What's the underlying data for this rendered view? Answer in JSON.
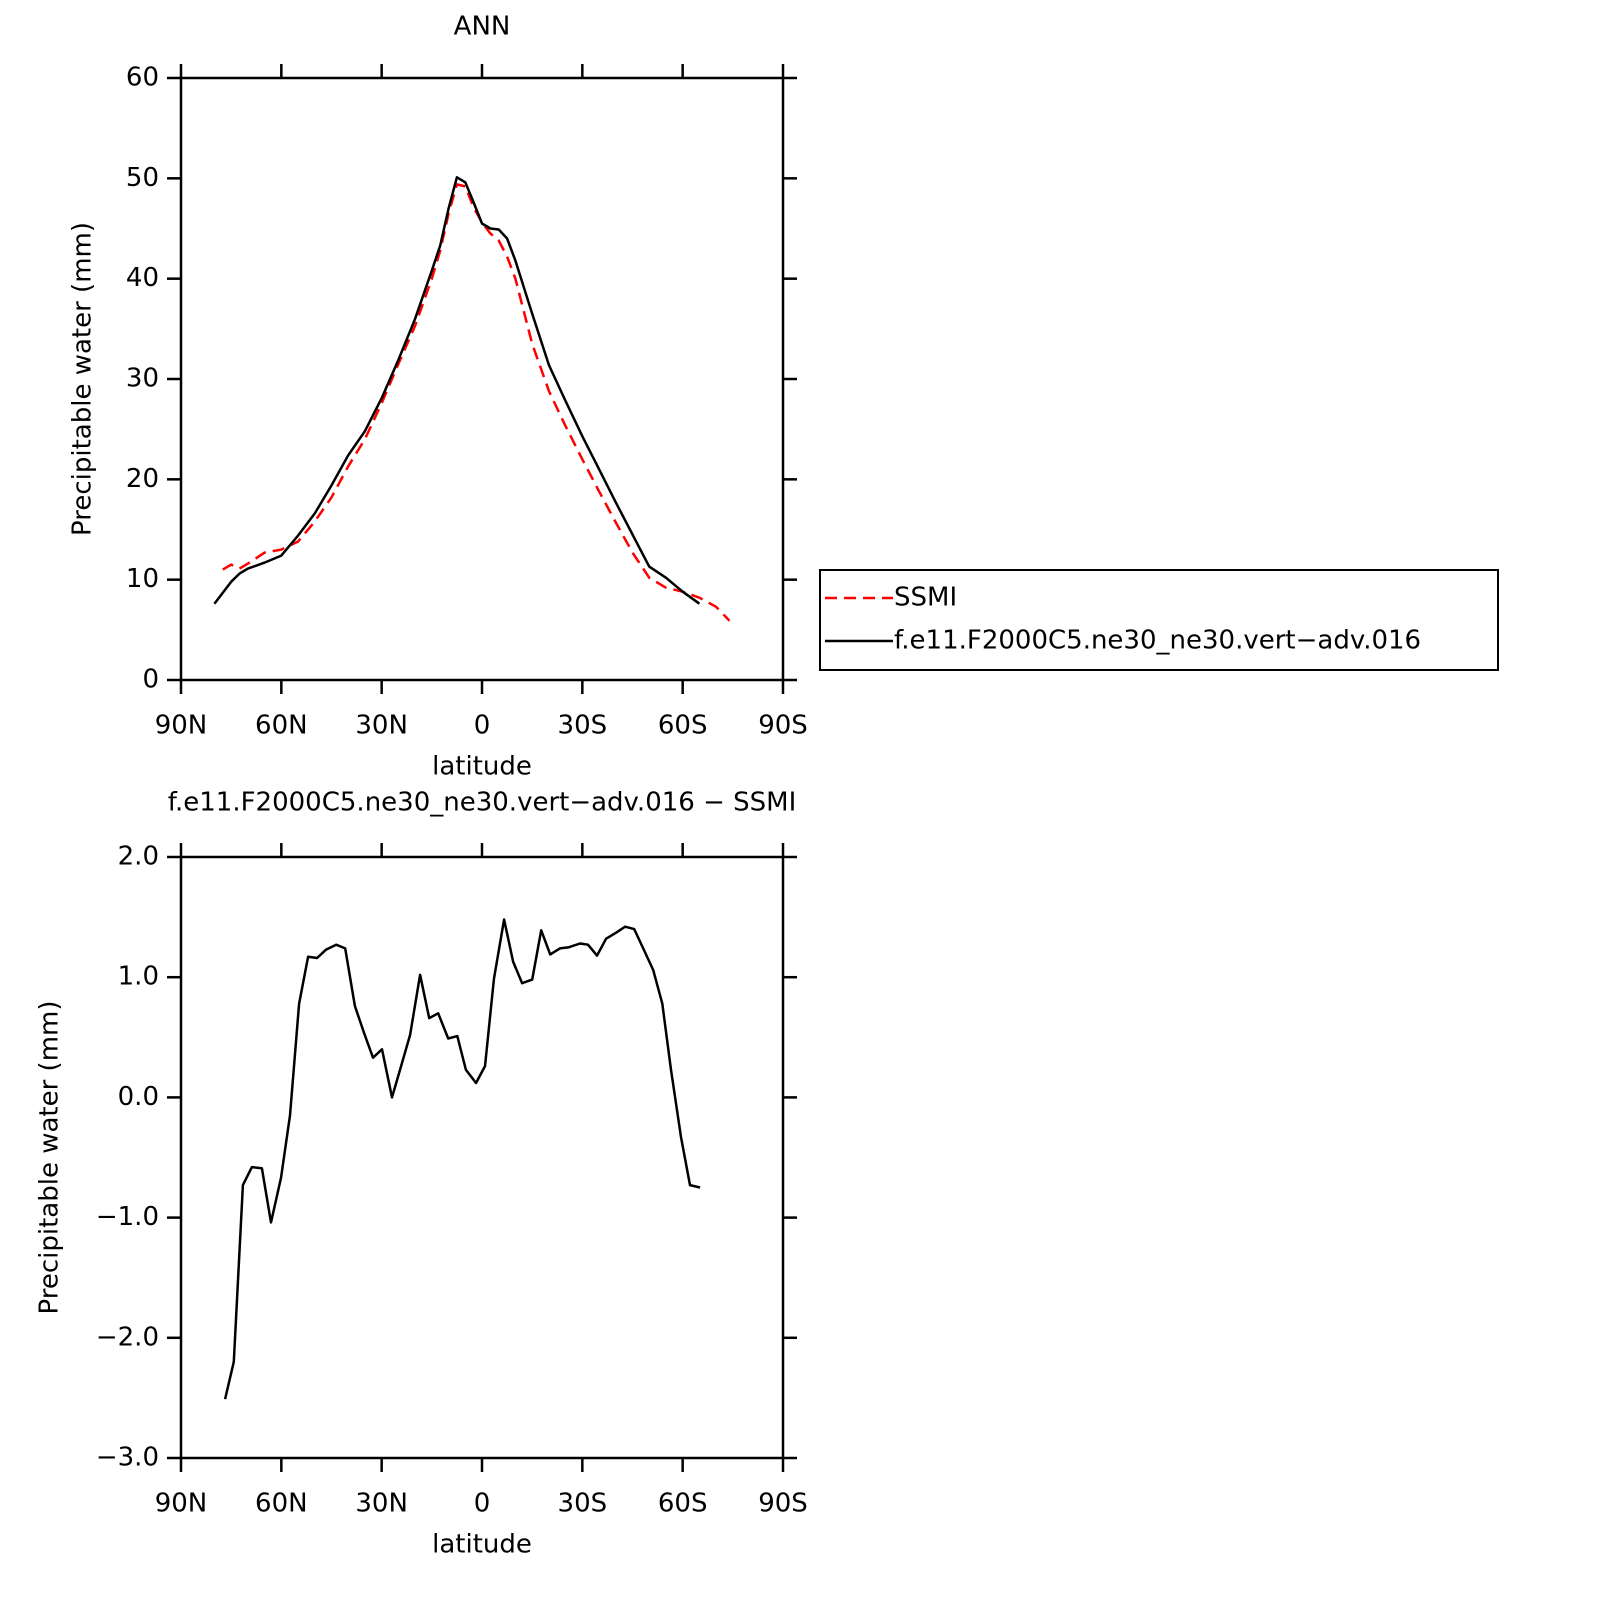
{
  "chart_data": [
    {
      "type": "line",
      "title": "ANN",
      "x_label": "latitude",
      "y_label": "Precipitable water (mm)",
      "x": [
        80,
        77.5,
        75,
        72.5,
        70,
        65,
        60,
        55,
        50,
        45,
        40,
        35,
        30,
        25,
        20,
        15,
        12.5,
        10,
        7.5,
        5,
        2.5,
        0,
        -2.5,
        -5,
        -7.5,
        -10,
        -15,
        -20,
        -25,
        -30,
        -35,
        -40,
        -45,
        -50,
        -55,
        -60,
        -65,
        -70,
        -74
      ],
      "series": [
        {
          "name": "SSMI",
          "color": "#ff0000",
          "linestyle": "dashed",
          "values": [
            null,
            11.0,
            11.5,
            11.1,
            11.6,
            12.7,
            13.0,
            13.8,
            15.8,
            18.2,
            21.3,
            24.0,
            27.6,
            31.5,
            35.3,
            40.0,
            42.8,
            46.5,
            49.4,
            49.2,
            47.1,
            45.6,
            44.5,
            43.8,
            42.2,
            40.0,
            33.5,
            28.8,
            25.3,
            22.0,
            18.8,
            15.7,
            12.7,
            10.2,
            9.2,
            8.8,
            8.2,
            7.3,
            5.9
          ]
        },
        {
          "name": "f.e11.F2000C5.ne30_ne30.vert−adv.016",
          "color": "#000000",
          "linestyle": "solid",
          "values": [
            7.6,
            8.7,
            9.8,
            10.6,
            11.1,
            11.7,
            12.4,
            14.4,
            16.6,
            19.4,
            22.4,
            24.8,
            28.1,
            31.9,
            36.0,
            40.8,
            43.3,
            47.0,
            50.1,
            49.6,
            47.6,
            45.5,
            45.0,
            44.9,
            44.0,
            41.8,
            36.5,
            31.4,
            27.8,
            24.3,
            21.0,
            17.7,
            14.5,
            11.3,
            10.2,
            8.8,
            7.6,
            null,
            null
          ]
        }
      ],
      "xlim": [
        90,
        -90
      ],
      "xticks": [
        {
          "value": 90,
          "label": "90N"
        },
        {
          "value": 60,
          "label": "60N"
        },
        {
          "value": 30,
          "label": "30N"
        },
        0,
        {
          "value": -30,
          "label": "30S"
        },
        {
          "value": -60,
          "label": "60S"
        },
        {
          "value": -90,
          "label": "90S"
        }
      ],
      "ylim": [
        0,
        60
      ],
      "yticks": [
        0,
        10,
        20,
        30,
        40,
        50,
        60
      ],
      "legend": "right"
    },
    {
      "type": "line",
      "title": "f.e11.F2000C5.ne30_ne30.vert−adv.016 − SSMI",
      "x_label": "latitude",
      "y_label": "Precipitable water (mm)",
      "x": [
        76.8,
        74.2,
        71.5,
        68.8,
        65.8,
        63.1,
        60.1,
        57.4,
        54.7,
        52.0,
        49.3,
        46.6,
        43.6,
        40.9,
        38.0,
        35.3,
        32.6,
        29.9,
        26.9,
        24.2,
        21.5,
        18.5,
        15.8,
        13.1,
        10.1,
        7.4,
        4.8,
        1.8,
        -0.9,
        -3.6,
        -6.6,
        -9.3,
        -12.0,
        -15.0,
        -17.7,
        -20.4,
        -23.3,
        -26.0,
        -29.3,
        -31.7,
        -34.4,
        -37.1,
        -40.1,
        -42.8,
        -45.5,
        -48.2,
        -51.2,
        -53.9,
        -56.5,
        -59.5,
        -62.2,
        -65.2
      ],
      "series": [
        {
          "name": "f.e11.F2000C5.ne30_ne30.vert−adv.016 − SSMI",
          "color": "#000000",
          "linestyle": "solid",
          "values": [
            -2.51,
            -2.2,
            -0.73,
            -0.58,
            -0.59,
            -1.04,
            -0.67,
            -0.15,
            0.78,
            1.17,
            1.16,
            1.23,
            1.27,
            1.24,
            0.76,
            0.54,
            0.33,
            0.4,
            0.0,
            0.26,
            0.52,
            1.02,
            0.66,
            0.7,
            0.49,
            0.51,
            0.23,
            0.12,
            0.26,
            0.99,
            1.48,
            1.13,
            0.95,
            0.98,
            1.39,
            1.19,
            1.24,
            1.25,
            1.28,
            1.27,
            1.18,
            1.32,
            1.37,
            1.42,
            1.4,
            1.24,
            1.06,
            0.78,
            0.23,
            -0.33,
            -0.73,
            -0.75
          ]
        }
      ],
      "xlim": [
        90,
        -90
      ],
      "xticks": [
        {
          "value": 90,
          "label": "90N"
        },
        {
          "value": 60,
          "label": "60N"
        },
        {
          "value": 30,
          "label": "30N"
        },
        0,
        {
          "value": -30,
          "label": "30S"
        },
        {
          "value": -60,
          "label": "60S"
        },
        {
          "value": -90,
          "label": "90S"
        }
      ],
      "ylim": [
        -3,
        2
      ],
      "yticks": [
        {
          "value": -3,
          "label": "−3.0"
        },
        {
          "value": -2,
          "label": "−2.0"
        },
        {
          "value": -1,
          "label": "−1.0"
        },
        {
          "value": 0,
          "label": "0.0"
        },
        {
          "value": 1,
          "label": "1.0"
        },
        {
          "value": 2,
          "label": "2.0"
        }
      ]
    }
  ]
}
